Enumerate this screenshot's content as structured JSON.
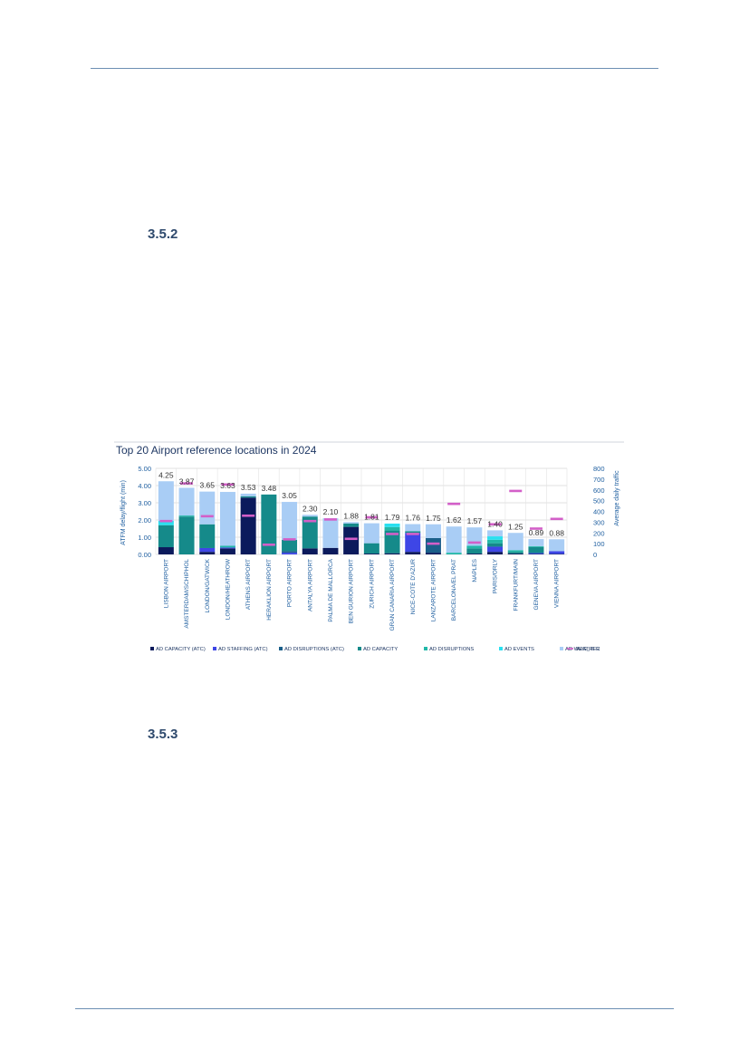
{
  "sections": {
    "first": "3.5.2",
    "second": "3.5.3"
  },
  "chart_data": {
    "type": "bar",
    "stacked": true,
    "title": "Top 20 Airport reference locations in 2024",
    "ylabel": "ATFM delay/flight (min)",
    "y2label": "Average daily traffic",
    "ylim": [
      0,
      5
    ],
    "y2lim": [
      0,
      800
    ],
    "yticks": [
      "0.00",
      "1.00",
      "2.00",
      "3.00",
      "4.00",
      "5.00"
    ],
    "y2ticks": [
      "0",
      "100",
      "200",
      "300",
      "400",
      "500",
      "600",
      "700",
      "800"
    ],
    "grid": true,
    "legend_position": "bottom",
    "categories": [
      "LISBON AIRPORT",
      "AMSTERDAM/SCHIPHOL",
      "LONDON/GATWICK",
      "LONDON/HEATHROW",
      "ATHENS AIRPORT",
      "HERAKLION AIRPORT",
      "PORTO AIRPORT",
      "ANTALYA AIRPORT",
      "PALMA DE MALLORCA",
      "BEN GURION AIRPORT",
      "ZURICH AIRPORT",
      "GRAN CANARIA AIRPORT",
      "NICE-COTE D'AZUR",
      "LANZAROTE AIRPORT",
      "BARCELONA/EL PRAT",
      "NAPLES",
      "PARIS/ORLY",
      "FRANKFURT/MAIN",
      "GENEVA AIRPORT",
      "VIENNA AIRPORT"
    ],
    "totals": [
      "4.25",
      "3.87",
      "3.65",
      "3.63",
      "3.53",
      "3.48",
      "3.05",
      "2.30",
      "2.10",
      "1.88",
      "1.81",
      "1.79",
      "1.76",
      "1.75",
      "1.62",
      "1.57",
      "1.40",
      "1.25",
      "0.89",
      "0.88"
    ],
    "series": [
      {
        "name": "AD CAPACITY (ATC)",
        "color": "#0b1a5c",
        "values": [
          0.42,
          0.0,
          0.15,
          0.35,
          3.3,
          0.0,
          0.0,
          0.35,
          0.38,
          1.6,
          0.05,
          0.07,
          0.15,
          0.1,
          0.0,
          0.05,
          0.15,
          0.05,
          0.03,
          0.03
        ]
      },
      {
        "name": "AD STAFFING (ATC)",
        "color": "#3e46e6",
        "values": [
          0.0,
          0.0,
          0.22,
          0.05,
          0.0,
          0.0,
          0.1,
          0.0,
          0.0,
          0.0,
          0.0,
          0.0,
          1.1,
          0.0,
          0.0,
          0.0,
          0.3,
          0.0,
          0.05,
          0.16
        ]
      },
      {
        "name": "AD DISRUPTIONS (ATC)",
        "color": "#1a5f8a",
        "values": [
          0.0,
          0.0,
          0.0,
          0.0,
          0.0,
          0.0,
          0.1,
          0.0,
          0.0,
          0.0,
          0.0,
          0.0,
          0.0,
          0.85,
          0.0,
          0.0,
          0.0,
          0.0,
          0.0,
          0.0
        ]
      },
      {
        "name": "AD CAPACITY",
        "color": "#158a8a",
        "values": [
          1.28,
          2.2,
          1.38,
          0.0,
          0.08,
          3.48,
          0.65,
          1.85,
          0.0,
          0.2,
          0.6,
          1.32,
          0.1,
          0.0,
          0.0,
          0.3,
          0.2,
          0.1,
          0.35,
          0.0
        ]
      },
      {
        "name": "AD DISRUPTIONS",
        "color": "#22b8a8",
        "values": [
          0.0,
          0.06,
          0.0,
          0.1,
          0.0,
          0.0,
          0.0,
          0.0,
          0.0,
          0.0,
          0.0,
          0.2,
          0.0,
          0.0,
          0.1,
          0.15,
          0.2,
          0.1,
          0.05,
          0.0
        ]
      },
      {
        "name": "AD EVENTS",
        "color": "#29e0f0",
        "values": [
          0.25,
          0.0,
          0.0,
          0.0,
          0.0,
          0.0,
          0.0,
          0.0,
          0.0,
          0.0,
          0.0,
          0.2,
          0.0,
          0.0,
          0.0,
          0.0,
          0.2,
          0.0,
          0.0,
          0.0
        ]
      },
      {
        "name": "AD WEATHER",
        "color": "#a9cdf5",
        "values": [
          2.3,
          1.61,
          1.9,
          3.13,
          0.15,
          0.0,
          2.2,
          0.1,
          1.72,
          0.08,
          1.16,
          0.0,
          0.41,
          0.8,
          1.52,
          1.07,
          0.35,
          1.0,
          0.41,
          0.69
        ]
      }
    ],
    "line_series": {
      "name": "AVG_TFC",
      "color": "#d35fc8",
      "axis": "right",
      "values": [
        310,
        660,
        355,
        650,
        360,
        90,
        140,
        310,
        325,
        145,
        345,
        190,
        190,
        100,
        470,
        110,
        280,
        590,
        240,
        330
      ]
    }
  }
}
